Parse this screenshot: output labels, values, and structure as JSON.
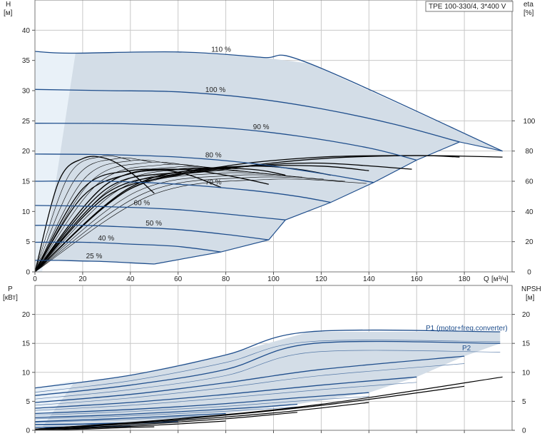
{
  "chart_data": [
    {
      "type": "line",
      "title": "TPE 100-330/4, 3*400 V",
      "ylabel": "H",
      "yunit": "[м]",
      "y2label": "eta",
      "y2unit": "[%]",
      "xlabel": "Q",
      "xunit": "[м³/ч]",
      "xlim": [
        0,
        200
      ],
      "ylim": [
        0,
        45
      ],
      "y2lim": [
        0,
        180
      ],
      "xticks": [
        0,
        20,
        40,
        60,
        80,
        100,
        120,
        140,
        160,
        180
      ],
      "yticks": [
        0,
        5,
        10,
        15,
        20,
        25,
        30,
        35,
        40
      ],
      "y2ticks": [
        0,
        20,
        40,
        60,
        80,
        100
      ],
      "grid": true,
      "speed_curves": [
        {
          "name": "110 %",
          "x": [
            0,
            15,
            60,
            95,
            115,
            196
          ],
          "y": [
            36.5,
            36.2,
            36.4,
            35.5,
            34.5,
            20
          ]
        },
        {
          "name": "100 %",
          "x": [
            0,
            30,
            60,
            90,
            120,
            150,
            178
          ],
          "y": [
            30.2,
            30,
            29.8,
            28.8,
            27,
            24.5,
            21.5
          ]
        },
        {
          "name": "90 %",
          "x": [
            0,
            40,
            80,
            110,
            140,
            160
          ],
          "y": [
            24.6,
            24.5,
            23.8,
            22.5,
            20.5,
            18.5
          ]
        },
        {
          "name": "80 %",
          "x": [
            0,
            30,
            60,
            90,
            120,
            142
          ],
          "y": [
            19.5,
            19.4,
            19,
            18,
            16.3,
            14.8
          ]
        },
        {
          "name": "70 %",
          "x": [
            0,
            30,
            60,
            90,
            110,
            124
          ],
          "y": [
            15,
            15,
            14.5,
            13.5,
            12.5,
            11.5
          ]
        },
        {
          "name": "60 %",
          "x": [
            0,
            30,
            60,
            90,
            105
          ],
          "y": [
            11,
            10.8,
            10.3,
            9.2,
            8.6
          ]
        },
        {
          "name": "50 %",
          "x": [
            0,
            20,
            40,
            60,
            80,
            98
          ],
          "y": [
            7.7,
            7.7,
            7.4,
            7,
            6.2,
            5.3
          ]
        },
        {
          "name": "40 %",
          "x": [
            0,
            20,
            40,
            60,
            78
          ],
          "y": [
            4.9,
            4.9,
            4.6,
            4.2,
            3.3
          ]
        },
        {
          "name": "25 %",
          "x": [
            0,
            10,
            20,
            30,
            40,
            50
          ],
          "y": [
            1.9,
            1.9,
            1.8,
            1.7,
            1.5,
            1.3
          ]
        }
      ],
      "eta_curves": [
        {
          "x": [
            0,
            40,
            80,
            120,
            160,
            196
          ],
          "y": [
            0,
            55,
            68,
            75,
            77,
            76
          ]
        },
        {
          "x": [
            0,
            40,
            80,
            120,
            160,
            178
          ],
          "y": [
            0,
            56,
            70,
            76,
            77,
            76
          ]
        },
        {
          "x": [
            0,
            30,
            60,
            90,
            120,
            158
          ],
          "y": [
            0,
            50,
            64,
            70,
            72,
            68
          ]
        },
        {
          "x": [
            0,
            30,
            60,
            90,
            120,
            140
          ],
          "y": [
            0,
            52,
            65,
            70,
            70,
            67
          ]
        },
        {
          "x": [
            0,
            30,
            60,
            90,
            110,
            124
          ],
          "y": [
            0,
            55,
            66,
            70,
            68,
            64
          ]
        },
        {
          "x": [
            0,
            30,
            60,
            90,
            105
          ],
          "y": [
            0,
            58,
            68,
            68,
            64
          ]
        },
        {
          "x": [
            0,
            20,
            40,
            60,
            80,
            98
          ],
          "y": [
            0,
            50,
            65,
            68,
            64,
            58
          ]
        },
        {
          "x": [
            0,
            20,
            40,
            60,
            78
          ],
          "y": [
            0,
            55,
            67,
            66,
            56
          ]
        },
        {
          "x": [
            0,
            10,
            20,
            30,
            40,
            50
          ],
          "y": [
            0,
            60,
            75,
            75,
            66,
            52
          ]
        }
      ]
    },
    {
      "type": "line",
      "ylabel": "P",
      "yunit": "[кВт]",
      "y2label": "NPSH",
      "y2unit": "[м]",
      "xlim": [
        0,
        200
      ],
      "ylim": [
        0,
        25
      ],
      "y2lim": [
        0,
        25
      ],
      "yticks": [
        0,
        5,
        10,
        15,
        20
      ],
      "y2ticks": [
        0,
        5,
        10,
        15,
        20
      ],
      "grid": true,
      "annotations": [
        "P1 (motor+freq.converter)",
        "P2"
      ],
      "power_p1": [
        {
          "x": [
            0,
            40,
            80,
            115,
            195
          ],
          "y": [
            7.3,
            9.5,
            13,
            17,
            17
          ]
        },
        {
          "x": [
            0,
            40,
            80,
            117,
            195
          ],
          "y": [
            6,
            7.8,
            10.5,
            15,
            15
          ]
        },
        {
          "x": [
            0,
            40,
            80,
            120,
            180
          ],
          "y": [
            4.8,
            6.2,
            8.2,
            10.5,
            12.8
          ]
        },
        {
          "x": [
            0,
            40,
            80,
            120,
            160
          ],
          "y": [
            3.8,
            4.8,
            6.2,
            7.8,
            9.2
          ]
        },
        {
          "x": [
            0,
            40,
            80,
            110,
            140
          ],
          "y": [
            2.9,
            3.6,
            4.6,
            5.6,
            6.5
          ]
        },
        {
          "x": [
            0,
            30,
            60,
            90,
            110
          ],
          "y": [
            2.2,
            2.6,
            3.2,
            3.9,
            4.5
          ]
        },
        {
          "x": [
            0,
            20,
            40,
            60,
            80
          ],
          "y": [
            1.5,
            1.8,
            2.1,
            2.5,
            2.9
          ]
        },
        {
          "x": [
            0,
            20,
            40,
            60
          ],
          "y": [
            1,
            1.1,
            1.3,
            1.5
          ]
        },
        {
          "x": [
            0,
            20,
            40
          ],
          "y": [
            0.5,
            0.6,
            0.7
          ]
        }
      ],
      "npsh": [
        {
          "x": [
            0,
            60,
            120,
            196
          ],
          "y": [
            0.2,
            2,
            4.5,
            9.2
          ]
        },
        {
          "x": [
            0,
            60,
            120,
            180
          ],
          "y": [
            0.2,
            1.9,
            4.3,
            7.6
          ]
        },
        {
          "x": [
            0,
            50,
            100,
            140
          ],
          "y": [
            0.2,
            1.4,
            3,
            4.8
          ]
        },
        {
          "x": [
            0,
            40,
            80,
            110
          ],
          "y": [
            0.1,
            0.9,
            2,
            3.1
          ]
        },
        {
          "x": [
            0,
            30,
            60,
            80
          ],
          "y": [
            0.1,
            0.5,
            1.1,
            1.6
          ]
        },
        {
          "x": [
            0,
            20,
            40,
            50
          ],
          "y": [
            0,
            0.2,
            0.5,
            0.6
          ]
        }
      ]
    }
  ],
  "colors": {
    "curve": "#1f4e8c",
    "fill": "#d3dde7",
    "fill_light": "#e9f1f8",
    "eta": "#000000"
  }
}
